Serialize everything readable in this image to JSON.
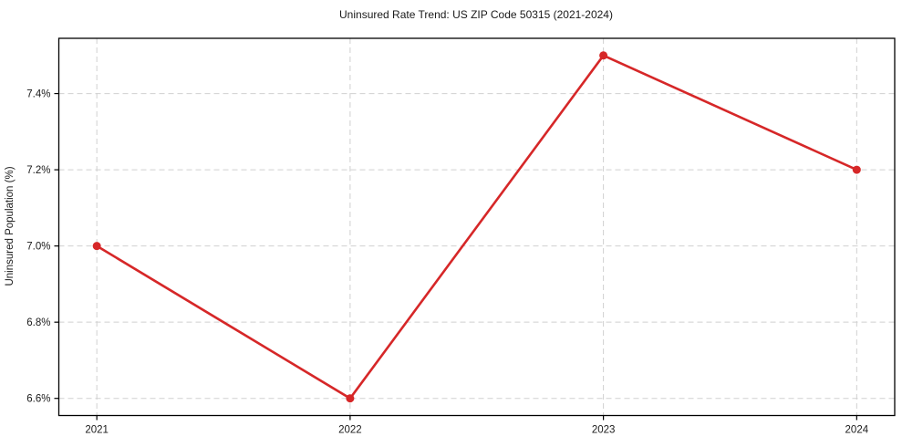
{
  "chart_data": {
    "type": "line",
    "title": "Uninsured Rate Trend: US ZIP Code 50315 (2021-2024)",
    "xlabel": "",
    "ylabel": "Uninsured Population (%)",
    "x": [
      2021,
      2022,
      2023,
      2024
    ],
    "values": [
      7.0,
      6.6,
      7.5,
      7.2
    ],
    "x_tick_labels": [
      "2021",
      "2022",
      "2023",
      "2024"
    ],
    "y_ticks": [
      6.6,
      6.8,
      7.0,
      7.2,
      7.4
    ],
    "y_tick_labels": [
      "6.6%",
      "6.8%",
      "7.0%",
      "7.2%",
      "7.4%"
    ],
    "xlim": [
      2020.85,
      2024.15
    ],
    "ylim": [
      6.555,
      7.545
    ],
    "grid": true,
    "grid_style": "dashed",
    "legend_position": "none",
    "colors": {
      "line": "#d62728",
      "marker": "#d62728",
      "grid": "#d0d0d0",
      "axis": "#000000",
      "text": "#1a1a1a",
      "background": "#ffffff"
    }
  }
}
